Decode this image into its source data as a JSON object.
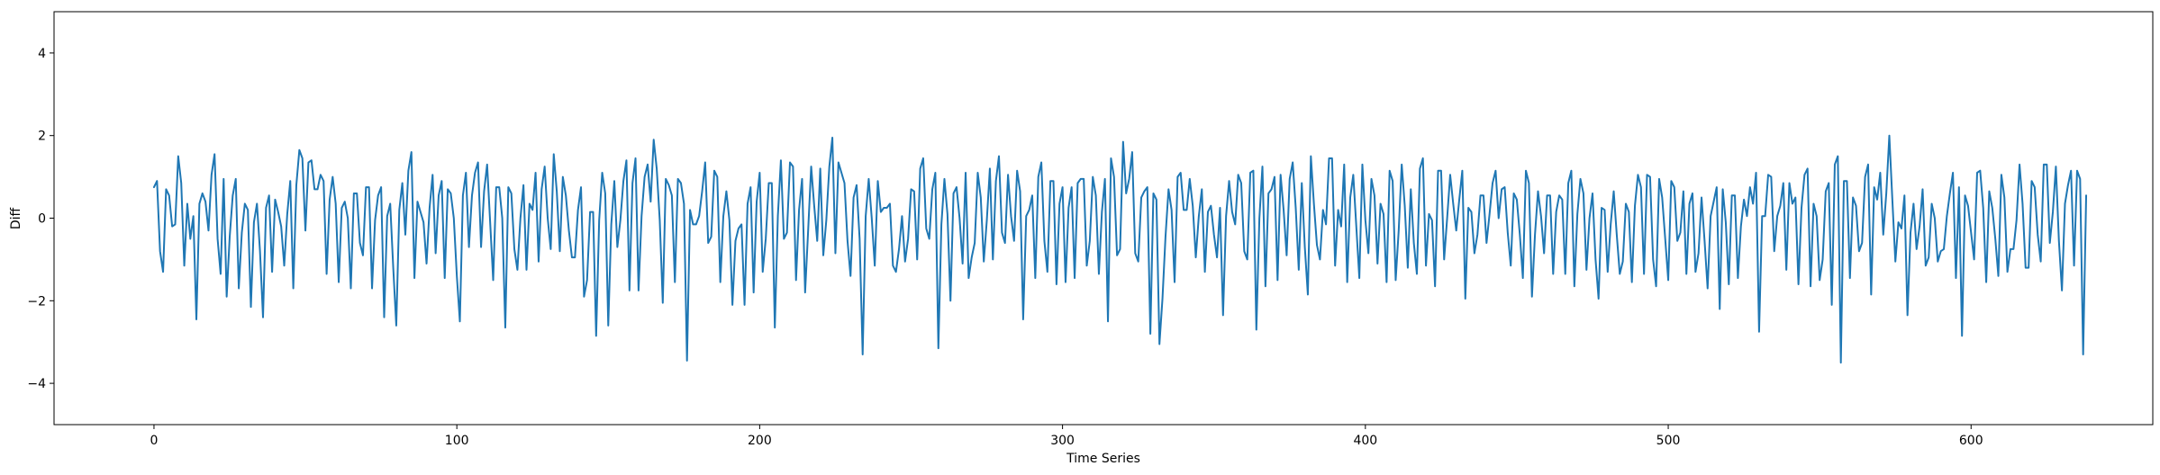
{
  "chart_data": {
    "type": "line",
    "title": "",
    "xlabel": "Time Series",
    "ylabel": "Diff",
    "xlim": [
      -33,
      660
    ],
    "ylim": [
      -5,
      5
    ],
    "xticks": [
      0,
      100,
      200,
      300,
      400,
      500,
      600
    ],
    "yticks": [
      -4,
      -2,
      0,
      2,
      4
    ],
    "grid": false,
    "legend": "none",
    "series": [
      {
        "color": "#1f77b4",
        "x_start": 0,
        "x_step": 1,
        "values": [
          0.75,
          0.9,
          -0.8,
          -1.3,
          0.7,
          0.55,
          -0.2,
          -0.15,
          1.5,
          0.85,
          -1.15,
          0.35,
          -0.5,
          0.05,
          -2.45,
          0.35,
          0.6,
          0.4,
          -0.3,
          1.05,
          1.55,
          -0.5,
          -1.35,
          0.95,
          -1.9,
          -0.45,
          0.55,
          0.95,
          -1.7,
          -0.35,
          0.35,
          0.2,
          -2.15,
          -0.1,
          0.35,
          -0.8,
          -2.4,
          0.25,
          0.55,
          -1.3,
          0.45,
          0.15,
          -0.2,
          -1.15,
          0.1,
          0.9,
          -1.7,
          0.8,
          1.65,
          1.45,
          -0.3,
          1.35,
          1.4,
          0.7,
          0.7,
          1.05,
          0.9,
          -1.35,
          0.45,
          1.0,
          0.35,
          -1.55,
          0.25,
          0.4,
          0.0,
          -1.7,
          0.6,
          0.6,
          -0.6,
          -0.9,
          0.75,
          0.75,
          -1.7,
          -0.05,
          0.55,
          0.75,
          -2.4,
          0.05,
          0.35,
          -1.2,
          -2.6,
          0.2,
          0.85,
          -0.4,
          1.15,
          1.6,
          -1.45,
          0.4,
          0.15,
          -0.1,
          -1.1,
          0.25,
          1.05,
          -0.85,
          0.55,
          0.9,
          -1.45,
          0.7,
          0.6,
          0.0,
          -1.4,
          -2.5,
          0.55,
          1.1,
          -0.7,
          0.55,
          1.1,
          1.35,
          -0.7,
          0.65,
          1.3,
          -0.1,
          -1.5,
          0.75,
          0.75,
          0.0,
          -2.65,
          0.75,
          0.6,
          -0.75,
          -1.25,
          0.0,
          0.8,
          -1.25,
          0.35,
          0.2,
          1.1,
          -1.05,
          0.7,
          1.25,
          0.0,
          -0.75,
          1.55,
          0.65,
          -0.8,
          1.0,
          0.55,
          -0.3,
          -0.95,
          -0.95,
          0.2,
          0.75,
          -1.9,
          -1.5,
          0.15,
          0.15,
          -2.85,
          -0.05,
          1.1,
          0.6,
          -2.6,
          -0.15,
          0.9,
          -0.7,
          -0.05,
          0.9,
          1.4,
          -1.75,
          0.85,
          1.45,
          -1.75,
          0.05,
          1.0,
          1.3,
          0.4,
          1.9,
          1.2,
          -0.05,
          -2.05,
          0.95,
          0.8,
          0.55,
          -1.55,
          0.95,
          0.85,
          0.35,
          -3.45,
          0.2,
          -0.15,
          -0.15,
          0.05,
          0.65,
          1.35,
          -0.6,
          -0.45,
          1.15,
          1.0,
          -1.55,
          0.05,
          0.65,
          -0.05,
          -2.1,
          -0.55,
          -0.25,
          -0.15,
          -2.1,
          0.35,
          0.75,
          -1.8,
          0.4,
          1.1,
          -1.3,
          -0.5,
          0.85,
          0.85,
          -2.65,
          0.05,
          1.4,
          -0.5,
          -0.35,
          1.35,
          1.25,
          -1.5,
          0.2,
          0.95,
          -1.8,
          -0.3,
          1.25,
          0.3,
          -0.55,
          1.2,
          -0.9,
          -0.05,
          1.25,
          1.95,
          -0.85,
          1.35,
          1.1,
          0.85,
          -0.55,
          -1.4,
          0.5,
          0.8,
          -0.5,
          -3.3,
          0.05,
          0.95,
          0.0,
          -1.15,
          0.9,
          0.15,
          0.25,
          0.25,
          0.35,
          -1.15,
          -1.3,
          -0.75,
          0.05,
          -1.05,
          -0.5,
          0.7,
          0.65,
          -1.0,
          1.2,
          1.45,
          -0.25,
          -0.5,
          0.7,
          1.1,
          -3.15,
          -0.15,
          0.95,
          0.1,
          -2.0,
          0.6,
          0.75,
          0.0,
          -1.1,
          1.1,
          -1.45,
          -0.95,
          -0.6,
          1.1,
          0.5,
          -1.05,
          -0.05,
          1.2,
          -1.0,
          0.9,
          1.5,
          -0.35,
          -0.6,
          1.05,
          0.05,
          -0.55,
          1.15,
          0.65,
          -2.45,
          0.05,
          0.2,
          0.55,
          -1.45,
          1.0,
          1.35,
          -0.55,
          -1.3,
          0.9,
          0.9,
          -1.6,
          0.35,
          0.75,
          -1.55,
          0.25,
          0.75,
          -1.45,
          0.85,
          0.95,
          0.95,
          -1.15,
          -0.55,
          1.0,
          0.55,
          -1.35,
          0.15,
          0.95,
          -2.5,
          1.45,
          1.0,
          -0.9,
          -0.75,
          1.85,
          0.6,
          0.95,
          1.6,
          -0.85,
          -1.05,
          0.5,
          0.65,
          0.75,
          -2.8,
          0.6,
          0.45,
          -3.05,
          -1.95,
          -0.45,
          0.7,
          0.2,
          -1.55,
          1.0,
          1.1,
          0.2,
          0.2,
          0.95,
          0.3,
          -0.95,
          0.05,
          0.7,
          -1.3,
          0.15,
          0.3,
          -0.4,
          -0.95,
          0.25,
          -2.35,
          0.05,
          0.9,
          0.15,
          -0.15,
          1.05,
          0.85,
          -0.8,
          -1.0,
          1.1,
          1.15,
          -2.7,
          0.0,
          1.25,
          -1.65,
          0.6,
          0.7,
          1.0,
          -1.5,
          1.05,
          0.2,
          -0.9,
          0.95,
          1.35,
          0.25,
          -1.25,
          0.85,
          -0.7,
          -1.85,
          1.5,
          0.35,
          -0.65,
          -1.0,
          0.2,
          -0.15,
          1.45,
          1.45,
          -1.15,
          0.2,
          -0.2,
          1.3,
          -1.55,
          0.5,
          1.05,
          -0.2,
          -1.45,
          1.3,
          -0.05,
          -0.85,
          0.95,
          0.55,
          -1.1,
          0.35,
          0.1,
          -1.55,
          1.15,
          0.9,
          -1.5,
          -0.3,
          1.3,
          0.3,
          -1.2,
          0.7,
          -0.6,
          -1.35,
          1.2,
          1.45,
          -1.15,
          0.1,
          -0.05,
          -1.65,
          1.15,
          1.15,
          -1.0,
          0.0,
          1.05,
          0.35,
          -0.3,
          0.45,
          1.15,
          -1.95,
          0.25,
          0.15,
          -0.85,
          -0.4,
          0.55,
          0.55,
          -0.6,
          0.1,
          0.85,
          1.15,
          0.0,
          0.7,
          0.75,
          -0.35,
          -1.15,
          0.6,
          0.45,
          -0.4,
          -1.45,
          1.15,
          0.85,
          -1.9,
          -0.4,
          0.65,
          0.05,
          -0.85,
          0.55,
          0.55,
          -1.35,
          0.15,
          0.55,
          0.45,
          -1.35,
          0.85,
          1.15,
          -1.65,
          0.1,
          0.95,
          0.6,
          -1.25,
          0.0,
          0.6,
          -1.0,
          -1.95,
          0.25,
          0.2,
          -1.3,
          -0.15,
          0.65,
          -0.4,
          -1.35,
          -1.05,
          0.35,
          0.15,
          -1.55,
          0.3,
          1.05,
          0.75,
          -1.35,
          1.05,
          1.0,
          -1.0,
          -1.65,
          0.95,
          0.5,
          -0.5,
          -1.5,
          0.9,
          0.75,
          -0.55,
          -0.35,
          0.65,
          -1.35,
          0.35,
          0.6,
          -1.3,
          -0.85,
          0.5,
          -0.55,
          -1.7,
          0.05,
          0.4,
          0.75,
          -2.2,
          0.7,
          -0.1,
          -1.6,
          0.55,
          0.55,
          -1.45,
          -0.2,
          0.45,
          0.05,
          0.75,
          0.35,
          1.1,
          -2.75,
          0.05,
          0.05,
          1.05,
          1.0,
          -0.8,
          0.05,
          0.3,
          0.85,
          -1.25,
          0.85,
          0.35,
          0.5,
          -1.6,
          0.25,
          1.05,
          1.2,
          -1.65,
          0.35,
          0.05,
          -1.5,
          -1.0,
          0.65,
          0.85,
          -2.1,
          1.3,
          1.5,
          -3.5,
          0.9,
          0.9,
          -1.45,
          0.5,
          0.3,
          -0.8,
          -0.6,
          1.0,
          1.3,
          -1.85,
          0.75,
          0.45,
          1.1,
          -0.4,
          0.6,
          2.0,
          0.45,
          -1.05,
          -0.1,
          -0.25,
          0.55,
          -2.35,
          -0.35,
          0.35,
          -0.75,
          -0.2,
          0.7,
          -1.15,
          -0.95,
          0.35,
          0.0,
          -1.05,
          -0.8,
          -0.75,
          0.05,
          0.6,
          1.1,
          -1.45,
          0.75,
          -2.85,
          0.55,
          0.3,
          -0.35,
          -1.0,
          1.1,
          1.15,
          0.25,
          -1.55,
          0.65,
          0.25,
          -0.5,
          -1.4,
          1.05,
          0.5,
          -1.3,
          -0.75,
          -0.75,
          -0.05,
          1.3,
          0.35,
          -1.2,
          -1.2,
          0.9,
          0.75,
          -0.4,
          -1.05,
          1.3,
          1.3,
          -0.6,
          0.15,
          1.25,
          -0.55,
          -1.75,
          0.35,
          0.8,
          1.15,
          -1.15,
          1.15,
          0.95,
          -3.3,
          0.55
        ]
      }
    ]
  }
}
